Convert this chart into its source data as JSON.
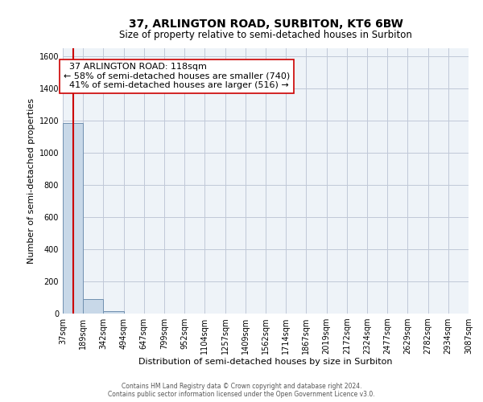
{
  "title": "37, ARLINGTON ROAD, SURBITON, KT6 6BW",
  "subtitle": "Size of property relative to semi-detached houses in Surbiton",
  "xlabel": "Distribution of semi-detached houses by size in Surbiton",
  "ylabel": "Number of semi-detached properties",
  "bin_edges": [
    37,
    189,
    342,
    494,
    647,
    799,
    952,
    1104,
    1257,
    1409,
    1562,
    1714,
    1867,
    2019,
    2172,
    2324,
    2477,
    2629,
    2782,
    2934,
    3087
  ],
  "bar_heights": [
    1185,
    90,
    15,
    0,
    0,
    0,
    0,
    0,
    0,
    0,
    0,
    0,
    0,
    0,
    0,
    0,
    0,
    0,
    0,
    0
  ],
  "bar_color": "#c8d8e8",
  "bar_edge_color": "#7090b0",
  "property_size": 118,
  "property_label": "37 ARLINGTON ROAD: 118sqm",
  "pct_smaller": 58,
  "count_smaller": 740,
  "pct_larger": 41,
  "count_larger": 516,
  "vline_color": "#cc0000",
  "ylim": [
    0,
    1650
  ],
  "yticks": [
    0,
    200,
    400,
    600,
    800,
    1000,
    1200,
    1400,
    1600
  ],
  "background_color": "#eef3f8",
  "plot_background": "#eef3f8",
  "grid_color": "#c0c8d8",
  "footer_line1": "Contains HM Land Registry data © Crown copyright and database right 2024.",
  "footer_line2": "Contains public sector information licensed under the Open Government Licence v3.0.",
  "title_fontsize": 10,
  "subtitle_fontsize": 8.5,
  "annotation_fontsize": 8,
  "axis_label_fontsize": 8,
  "tick_fontsize": 7
}
